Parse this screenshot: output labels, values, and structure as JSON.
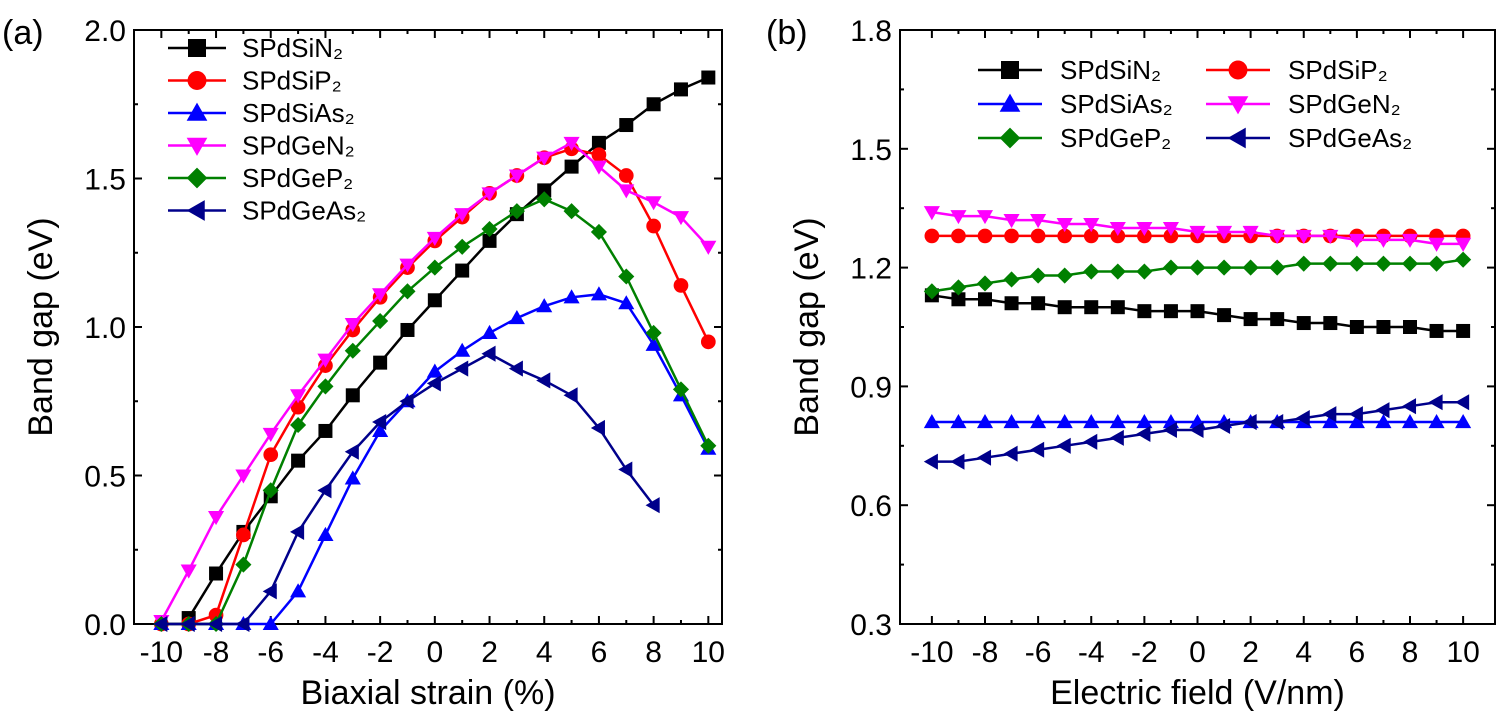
{
  "chart_data": [
    {
      "type": "line",
      "panel_label": "(a)",
      "xlabel": "Biaxial strain (%)",
      "ylabel": "Band gap (eV)",
      "xlim": [
        -11,
        10.5
      ],
      "ylim": [
        0,
        2.0
      ],
      "xticks": [
        -10,
        -8,
        -6,
        -4,
        -2,
        0,
        2,
        4,
        6,
        8,
        10
      ],
      "yticks": [
        0.0,
        0.5,
        1.0,
        1.5,
        2.0
      ],
      "ytick_labels": [
        "0.0",
        "0.5",
        "1.0",
        "1.5",
        "2.0"
      ],
      "legend": {
        "position": "top-left",
        "columns": 1
      },
      "series": [
        {
          "name": "SPdSiN₂",
          "color": "#000000",
          "marker": "square",
          "x": [
            -9,
            -8,
            -7,
            -6,
            -5,
            -4,
            -3,
            -2,
            -1,
            0,
            1,
            2,
            3,
            4,
            5,
            6,
            7,
            8,
            9,
            10
          ],
          "y": [
            0.02,
            0.17,
            0.31,
            0.43,
            0.55,
            0.65,
            0.77,
            0.88,
            0.99,
            1.09,
            1.19,
            1.29,
            1.38,
            1.46,
            1.54,
            1.62,
            1.68,
            1.75,
            1.8,
            1.84
          ]
        },
        {
          "name": "SPdSiP₂",
          "color": "#ff0000",
          "marker": "circle",
          "x": [
            -10,
            -9,
            -8,
            -7,
            -6,
            -5,
            -4,
            -3,
            -2,
            -1,
            0,
            1,
            2,
            3,
            4,
            5,
            6,
            7,
            8,
            9,
            10
          ],
          "y": [
            0,
            0,
            0.03,
            0.3,
            0.57,
            0.73,
            0.87,
            0.99,
            1.1,
            1.2,
            1.29,
            1.37,
            1.45,
            1.51,
            1.57,
            1.6,
            1.58,
            1.51,
            1.34,
            1.14,
            0.95
          ]
        },
        {
          "name": "SPdSiAs₂",
          "color": "#0000ff",
          "marker": "triangle-up",
          "x": [
            -10,
            -9,
            -8,
            -7,
            -6,
            -5,
            -4,
            -3,
            -2,
            -1,
            0,
            1,
            2,
            3,
            4,
            5,
            6,
            7,
            8,
            9,
            10
          ],
          "y": [
            0,
            0,
            0,
            0,
            0,
            0.11,
            0.3,
            0.49,
            0.65,
            0.75,
            0.85,
            0.92,
            0.98,
            1.03,
            1.07,
            1.1,
            1.11,
            1.08,
            0.94,
            0.77,
            0.59
          ]
        },
        {
          "name": "SPdGeN₂",
          "color": "#ff00ff",
          "marker": "triangle-down",
          "x": [
            -10,
            -9,
            -8,
            -7,
            -6,
            -5,
            -4,
            -3,
            -2,
            -1,
            0,
            1,
            2,
            3,
            4,
            5,
            6,
            7,
            8,
            9,
            10
          ],
          "y": [
            0.01,
            0.18,
            0.36,
            0.5,
            0.64,
            0.77,
            0.89,
            1.01,
            1.11,
            1.21,
            1.3,
            1.38,
            1.45,
            1.51,
            1.57,
            1.62,
            1.54,
            1.46,
            1.42,
            1.37,
            1.27
          ]
        },
        {
          "name": "SPdGeP₂",
          "color": "#008000",
          "marker": "diamond",
          "x": [
            -10,
            -9,
            -8,
            -7,
            -6,
            -5,
            -4,
            -3,
            -2,
            -1,
            0,
            1,
            2,
            3,
            4,
            5,
            6,
            7,
            8,
            9,
            10
          ],
          "y": [
            0,
            0,
            0,
            0.2,
            0.45,
            0.67,
            0.8,
            0.92,
            1.02,
            1.12,
            1.2,
            1.27,
            1.33,
            1.39,
            1.43,
            1.39,
            1.32,
            1.17,
            0.98,
            0.79,
            0.6
          ]
        },
        {
          "name": "SPdGeAs₂",
          "color": "#00008b",
          "marker": "triangle-left",
          "x": [
            -10,
            -9,
            -8,
            -7,
            -6,
            -5,
            -4,
            -3,
            -2,
            -1,
            0,
            1,
            2,
            3,
            4,
            5,
            6,
            7,
            8
          ],
          "y": [
            0,
            0,
            0,
            0,
            0.11,
            0.31,
            0.45,
            0.58,
            0.68,
            0.75,
            0.81,
            0.86,
            0.91,
            0.86,
            0.82,
            0.77,
            0.66,
            0.52,
            0.4
          ]
        }
      ]
    },
    {
      "type": "line",
      "panel_label": "(b)",
      "xlabel": "Electric field (V/nm)",
      "ylabel": "Band gap (eV)",
      "xlim": [
        -11.2,
        11.2
      ],
      "ylim": [
        0.3,
        1.8
      ],
      "xticks": [
        -10,
        -8,
        -6,
        -4,
        -2,
        0,
        2,
        4,
        6,
        8,
        10
      ],
      "yticks": [
        0.3,
        0.6,
        0.9,
        1.2,
        1.5,
        1.8
      ],
      "ytick_labels": [
        "0.3",
        "0.6",
        "0.9",
        "1.2",
        "1.5",
        "1.8"
      ],
      "legend": {
        "position": "top-right",
        "columns": 2
      },
      "series": [
        {
          "name": "SPdSiN₂",
          "color": "#000000",
          "marker": "square",
          "x": [
            -10,
            -9,
            -8,
            -7,
            -6,
            -5,
            -4,
            -3,
            -2,
            -1,
            0,
            1,
            2,
            3,
            4,
            5,
            6,
            7,
            8,
            9,
            10
          ],
          "y": [
            1.13,
            1.12,
            1.12,
            1.11,
            1.11,
            1.1,
            1.1,
            1.1,
            1.09,
            1.09,
            1.09,
            1.08,
            1.07,
            1.07,
            1.06,
            1.06,
            1.05,
            1.05,
            1.05,
            1.04,
            1.04
          ]
        },
        {
          "name": "SPdSiP₂",
          "color": "#ff0000",
          "marker": "circle",
          "x": [
            -10,
            -9,
            -8,
            -7,
            -6,
            -5,
            -4,
            -3,
            -2,
            -1,
            0,
            1,
            2,
            3,
            4,
            5,
            6,
            7,
            8,
            9,
            10
          ],
          "y": [
            1.28,
            1.28,
            1.28,
            1.28,
            1.28,
            1.28,
            1.28,
            1.28,
            1.28,
            1.28,
            1.28,
            1.28,
            1.28,
            1.28,
            1.28,
            1.28,
            1.28,
            1.28,
            1.28,
            1.28,
            1.28
          ]
        },
        {
          "name": "SPdSiAs₂",
          "color": "#0000ff",
          "marker": "triangle-up",
          "x": [
            -10,
            -9,
            -8,
            -7,
            -6,
            -5,
            -4,
            -3,
            -2,
            -1,
            0,
            1,
            2,
            3,
            4,
            5,
            6,
            7,
            8,
            9,
            10
          ],
          "y": [
            0.81,
            0.81,
            0.81,
            0.81,
            0.81,
            0.81,
            0.81,
            0.81,
            0.81,
            0.81,
            0.81,
            0.81,
            0.81,
            0.81,
            0.81,
            0.81,
            0.81,
            0.81,
            0.81,
            0.81,
            0.81
          ]
        },
        {
          "name": "SPdGeN₂",
          "color": "#ff00ff",
          "marker": "triangle-down",
          "x": [
            -10,
            -9,
            -8,
            -7,
            -6,
            -5,
            -4,
            -3,
            -2,
            -1,
            0,
            1,
            2,
            3,
            4,
            5,
            6,
            7,
            8,
            9,
            10
          ],
          "y": [
            1.34,
            1.33,
            1.33,
            1.32,
            1.32,
            1.31,
            1.31,
            1.3,
            1.3,
            1.3,
            1.29,
            1.29,
            1.29,
            1.28,
            1.28,
            1.28,
            1.27,
            1.27,
            1.27,
            1.26,
            1.26
          ]
        },
        {
          "name": "SPdGeP₂",
          "color": "#008000",
          "marker": "diamond",
          "x": [
            -10,
            -9,
            -8,
            -7,
            -6,
            -5,
            -4,
            -3,
            -2,
            -1,
            0,
            1,
            2,
            3,
            4,
            5,
            6,
            7,
            8,
            9,
            10
          ],
          "y": [
            1.14,
            1.15,
            1.16,
            1.17,
            1.18,
            1.18,
            1.19,
            1.19,
            1.19,
            1.2,
            1.2,
            1.2,
            1.2,
            1.2,
            1.21,
            1.21,
            1.21,
            1.21,
            1.21,
            1.21,
            1.22
          ]
        },
        {
          "name": "SPdGeAs₂",
          "color": "#00008b",
          "marker": "triangle-left",
          "x": [
            -10,
            -9,
            -8,
            -7,
            -6,
            -5,
            -4,
            -3,
            -2,
            -1,
            0,
            1,
            2,
            3,
            4,
            5,
            6,
            7,
            8,
            9,
            10
          ],
          "y": [
            0.71,
            0.71,
            0.72,
            0.73,
            0.74,
            0.75,
            0.76,
            0.77,
            0.78,
            0.79,
            0.79,
            0.8,
            0.81,
            0.81,
            0.82,
            0.83,
            0.83,
            0.84,
            0.85,
            0.86,
            0.86
          ]
        }
      ]
    }
  ]
}
